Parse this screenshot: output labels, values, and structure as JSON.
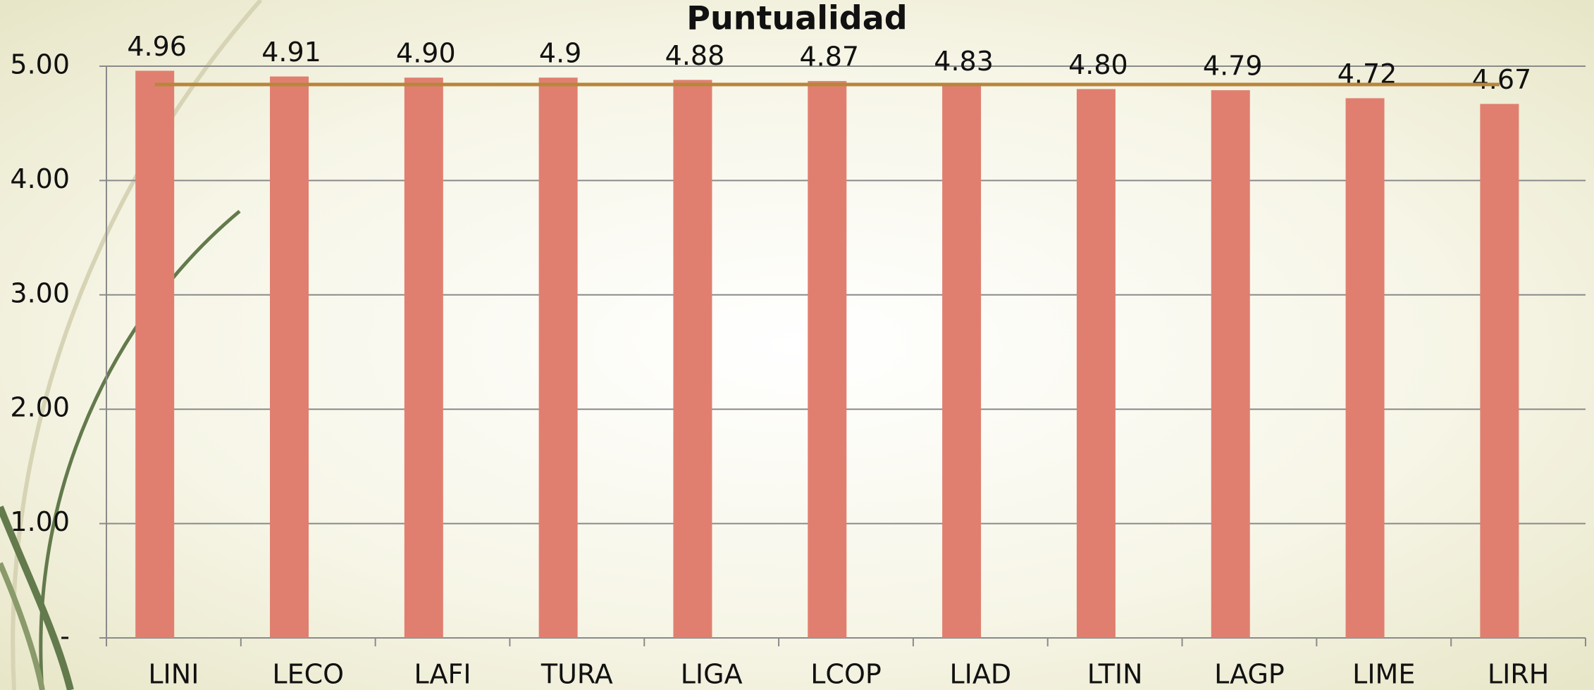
{
  "chart_data": {
    "type": "bar",
    "title": "Puntualidad",
    "categories": [
      "LINI",
      "LECO",
      "LAFI",
      "TURA",
      "LIGA",
      "LCOP",
      "LIAD",
      "LTIN",
      "LAGP",
      "LIME",
      "LIRH"
    ],
    "values": [
      4.96,
      4.91,
      4.9,
      4.9,
      4.88,
      4.87,
      4.83,
      4.8,
      4.79,
      4.72,
      4.67
    ],
    "value_labels": [
      "4.96",
      "4.91",
      "4.90",
      "4.9",
      "4.88",
      "4.87",
      "4.83",
      "4.80",
      "4.79",
      "4.72",
      "4.67"
    ],
    "color": "#e07f70",
    "reference_line": {
      "value": 4.84,
      "color": "#b8863a"
    },
    "ylim": [
      0,
      5
    ],
    "yticks": [
      {
        "value": 0,
        "label": "-"
      },
      {
        "value": 1,
        "label": "1.00"
      },
      {
        "value": 2,
        "label": "2.00"
      },
      {
        "value": 3,
        "label": "3.00"
      },
      {
        "value": 4,
        "label": "4.00"
      },
      {
        "value": 5,
        "label": "5.00"
      }
    ],
    "grid": true
  }
}
